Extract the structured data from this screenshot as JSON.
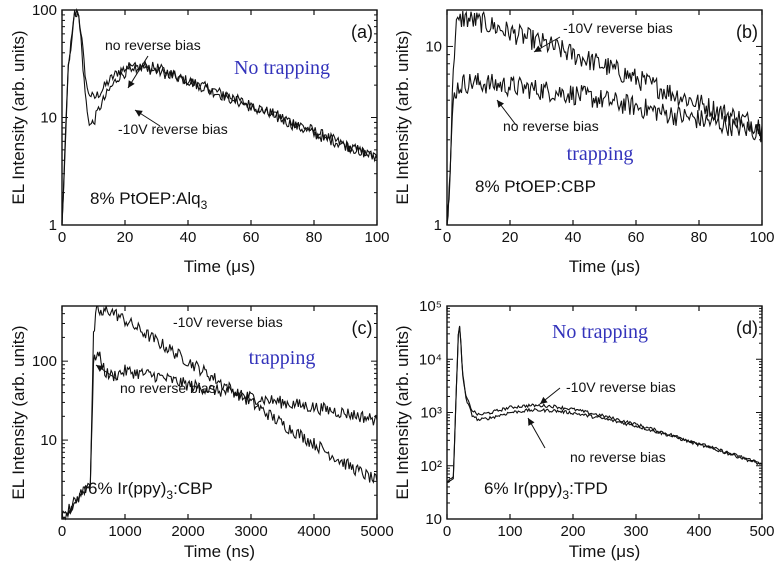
{
  "colors": {
    "status_text": "#3333bb",
    "trace": "#111111",
    "axes": "#111111"
  },
  "chart_data": [
    {
      "type": "line",
      "panel_label": "(a)",
      "xlabel": "Time (μs)",
      "ylabel": "EL Intensity (arb. units)",
      "xlim": [
        0,
        100
      ],
      "ylim": [
        1,
        100
      ],
      "y_log": true,
      "x_ticks": [
        0,
        20,
        40,
        60,
        80,
        100
      ],
      "x_tick_labels": [
        "0",
        "20",
        "40",
        "60",
        "80",
        "100"
      ],
      "y_ticks": [
        1,
        10,
        100
      ],
      "y_tick_labels": [
        "1",
        "10",
        "100"
      ],
      "sample_label": "8% PtOEP:Alq",
      "sample_subscript": "3",
      "status": "No trapping",
      "noise": 0.05,
      "series": [
        {
          "name": "no reverse bias",
          "x": [
            0,
            2,
            4,
            5,
            6,
            7,
            8,
            10,
            12,
            15,
            18,
            22,
            26,
            30,
            40,
            50,
            60,
            70,
            80,
            90,
            100
          ],
          "y": [
            1,
            30,
            90,
            100,
            65,
            32,
            18,
            15,
            17,
            22,
            27,
            30,
            29,
            27,
            22,
            17,
            13,
            10,
            7.5,
            5.5,
            4.2
          ]
        },
        {
          "name": "-10V reverse bias",
          "x": [
            0,
            2,
            4,
            5,
            6,
            7,
            8,
            9,
            10,
            12,
            15,
            18,
            22,
            26,
            30,
            40,
            50,
            60,
            70,
            80,
            90,
            100
          ],
          "y": [
            1,
            30,
            90,
            100,
            55,
            22,
            11,
            8.5,
            9,
            12.5,
            18,
            24,
            28.5,
            30,
            29,
            22,
            16.5,
            12.5,
            9.5,
            7,
            5.5,
            4.2
          ]
        }
      ],
      "annotations": [
        "no reverse bias",
        "-10V reverse bias"
      ]
    },
    {
      "type": "line",
      "panel_label": "(b)",
      "xlabel": "Time (μs)",
      "ylabel": "EL Intensity (arb. units)",
      "xlim": [
        0,
        100
      ],
      "ylim": [
        1,
        16
      ],
      "y_log": true,
      "x_ticks": [
        0,
        20,
        40,
        60,
        80,
        100
      ],
      "x_tick_labels": [
        "0",
        "20",
        "40",
        "60",
        "80",
        "100"
      ],
      "y_ticks": [
        1,
        10
      ],
      "y_tick_labels": [
        "1",
        "10"
      ],
      "sample_label": "8% PtOEP:CBP",
      "sample_subscript": "",
      "status": "trapping",
      "noise": 0.06,
      "series": [
        {
          "name": "-10V reverse bias",
          "x": [
            0,
            1,
            2,
            3,
            5,
            8,
            12,
            20,
            30,
            40,
            50,
            60,
            70,
            80,
            90,
            100
          ],
          "y": [
            1,
            2,
            8,
            13,
            14.5,
            14,
            13.5,
            12,
            10.5,
            9,
            7.8,
            6.6,
            5.6,
            4.8,
            4.1,
            3.6
          ]
        },
        {
          "name": "no reverse bias",
          "x": [
            0,
            1,
            2,
            3,
            5,
            8,
            12,
            20,
            30,
            40,
            50,
            60,
            70,
            80,
            90,
            100
          ],
          "y": [
            1,
            2,
            5,
            5.8,
            6.2,
            6.3,
            6.2,
            6,
            5.7,
            5.4,
            5,
            4.6,
            4.2,
            3.9,
            3.6,
            3.3
          ]
        }
      ],
      "annotations": [
        "-10V reverse bias",
        "no reverse bias"
      ]
    },
    {
      "type": "line",
      "panel_label": "(c)",
      "xlabel": "Time (ns)",
      "ylabel": "EL Intensity (arb. units)",
      "xlim": [
        0,
        5000
      ],
      "ylim": [
        1,
        500
      ],
      "y_log": true,
      "x_ticks": [
        0,
        1000,
        2000,
        3000,
        4000,
        5000
      ],
      "x_tick_labels": [
        "0",
        "1000",
        "2000",
        "3000",
        "4000",
        "5000"
      ],
      "y_ticks": [
        10,
        100
      ],
      "y_tick_labels": [
        "10",
        "100"
      ],
      "sample_label": "6% Ir(ppy)",
      "sample_subscript": "3",
      "sample_suffix": ":CBP",
      "status": "trapping",
      "noise": 0.08,
      "series": [
        {
          "name": "-10V reverse bias",
          "x": [
            0,
            450,
            500,
            550,
            600,
            650,
            700,
            800,
            1000,
            1500,
            2000,
            2500,
            3000,
            3500,
            4000,
            4500,
            5000
          ],
          "y": [
            1,
            3,
            200,
            450,
            420,
            380,
            460,
            420,
            330,
            180,
            100,
            55,
            30,
            16,
            9,
            5,
            3
          ]
        },
        {
          "name": "no reverse bias",
          "x": [
            0,
            450,
            500,
            550,
            600,
            700,
            800,
            1000,
            1500,
            2000,
            2500,
            3000,
            3500,
            4000,
            4500,
            5000
          ],
          "y": [
            1,
            3,
            90,
            130,
            110,
            70,
            65,
            75,
            65,
            50,
            42,
            35,
            30,
            26,
            22,
            18
          ]
        }
      ],
      "annotations": [
        "-10V reverse bias",
        "no reverse bias"
      ]
    },
    {
      "type": "line",
      "panel_label": "(d)",
      "xlabel": "Time (μs)",
      "ylabel": "EL Intensity (arb. units)",
      "xlim": [
        0,
        500
      ],
      "ylim": [
        10,
        100000
      ],
      "y_log": true,
      "x_ticks": [
        0,
        100,
        200,
        300,
        400,
        500
      ],
      "x_tick_labels": [
        "0",
        "100",
        "200",
        "300",
        "400",
        "500"
      ],
      "y_ticks": [
        10,
        100,
        1000,
        10000,
        100000
      ],
      "y_tick_labels": [
        "10",
        "10²",
        "10³",
        "10⁴",
        "10⁵"
      ],
      "sample_label": "6% Ir(ppy)",
      "sample_subscript": "3",
      "sample_suffix": ":TPD",
      "status": "No trapping",
      "noise": 0.03,
      "series": [
        {
          "name": "-10V reverse bias",
          "x": [
            0,
            10,
            15,
            18,
            20,
            22,
            25,
            30,
            40,
            50,
            70,
            100,
            130,
            150,
            170,
            200,
            250,
            300,
            350,
            400,
            450,
            500
          ],
          "y": [
            50,
            60,
            3000,
            30000,
            40000,
            20000,
            5000,
            2000,
            1100,
            900,
            1000,
            1250,
            1350,
            1350,
            1300,
            1150,
            850,
            600,
            400,
            260,
            170,
            110
          ]
        },
        {
          "name": "no reverse bias",
          "x": [
            0,
            10,
            15,
            18,
            20,
            22,
            25,
            30,
            40,
            50,
            70,
            100,
            130,
            150,
            170,
            200,
            250,
            300,
            350,
            400,
            450,
            500
          ],
          "y": [
            50,
            60,
            3000,
            30000,
            40000,
            20000,
            5000,
            1800,
            900,
            720,
            800,
            1000,
            1100,
            1100,
            1080,
            980,
            760,
            560,
            380,
            250,
            165,
            105
          ]
        }
      ],
      "annotations": [
        "-10V reverse bias",
        "no reverse bias"
      ]
    }
  ]
}
